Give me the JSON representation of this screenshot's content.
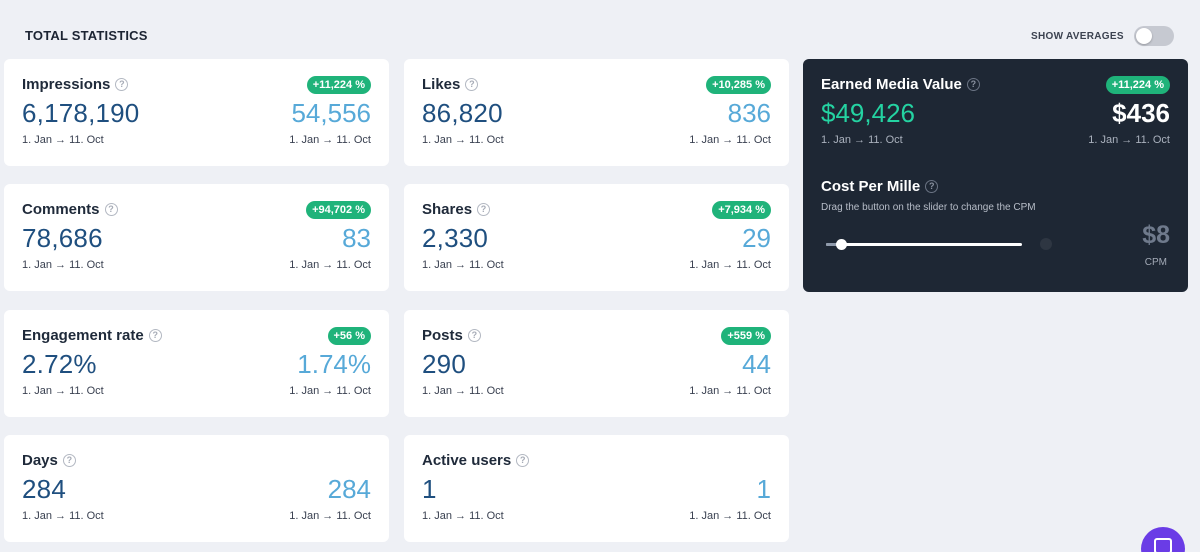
{
  "header": {
    "title": "TOTAL STATISTICS",
    "averages_label": "SHOW AVERAGES",
    "averages_enabled": false
  },
  "cards": [
    {
      "label": "Impressions",
      "badge": "+11,224 %",
      "value": "6,178,190",
      "side_value": "54,556",
      "range_left": "1. Jan → 11. Oct",
      "range_right": "1. Jan → 11. Oct"
    },
    {
      "label": "Likes",
      "badge": "+10,285 %",
      "value": "86,820",
      "side_value": "836",
      "range_left": "1. Jan → 11. Oct",
      "range_right": "1. Jan → 11. Oct"
    },
    {
      "label": "Comments",
      "badge": "+94,702 %",
      "value": "78,686",
      "side_value": "83",
      "range_left": "1. Jan → 11. Oct",
      "range_right": "1. Jan → 11. Oct"
    },
    {
      "label": "Shares",
      "badge": "+7,934 %",
      "value": "2,330",
      "side_value": "29",
      "range_left": "1. Jan → 11. Oct",
      "range_right": "1. Jan → 11. Oct"
    },
    {
      "label": "Engagement rate",
      "badge": "+56 %",
      "value": "2.72%",
      "side_value": "1.74%",
      "range_left": "1. Jan → 11. Oct",
      "range_right": "1. Jan → 11. Oct"
    },
    {
      "label": "Posts",
      "badge": "+559 %",
      "value": "290",
      "side_value": "44",
      "range_left": "1. Jan → 11. Oct",
      "range_right": "1. Jan → 11. Oct"
    },
    {
      "label": "Days",
      "value": "284",
      "side_value": "284",
      "range_left": "1. Jan → 11. Oct",
      "range_right": "1. Jan → 11. Oct"
    },
    {
      "label": "Active users",
      "value": "1",
      "side_value": "1",
      "range_left": "1. Jan → 11. Oct",
      "range_right": "1. Jan → 11. Oct"
    }
  ],
  "earned_media": {
    "label": "Earned Media Value",
    "badge": "+11,224 %",
    "value": "$49,426",
    "side_value": "$436",
    "range_left": "1. Jan → 11. Oct",
    "range_right": "1. Jan → 11. Oct"
  },
  "cpm": {
    "title": "Cost Per Mille",
    "hint": "Drag the button on the slider to change the CPM",
    "value": "$8",
    "unit": "CPM"
  },
  "colors": {
    "badge_green": "#1fb37a",
    "primary_blue": "#1f4f7f",
    "secondary_blue": "#57a9d8",
    "dark_panel": "#1e2734",
    "emv_green": "#24d3a2",
    "chat_purple": "#6a3ce6"
  },
  "icons": {
    "help": "?",
    "chat": "chat-icon"
  }
}
